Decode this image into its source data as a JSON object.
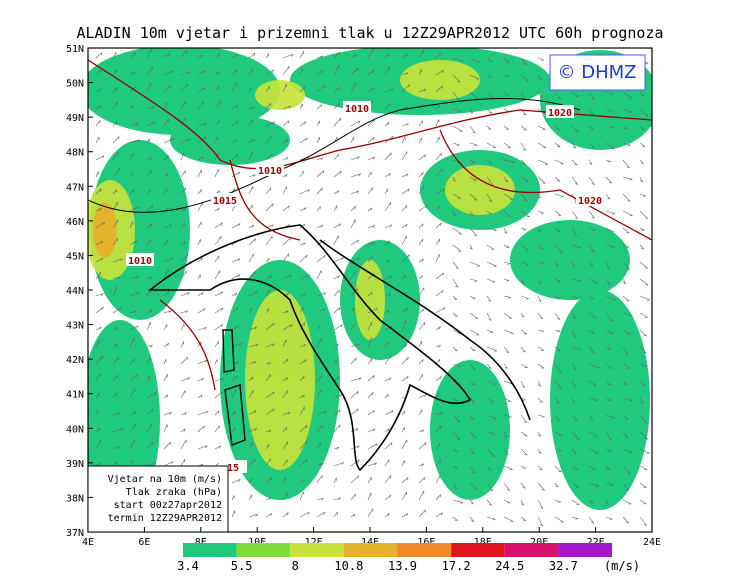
{
  "header": {
    "title": "ALADIN 10m vjetar i prizemni tlak u 12Z29APR2012 UTC 60h prognoza"
  },
  "logo": "© DHMZ",
  "lat_labels": [
    "51N",
    "50N",
    "49N",
    "48N",
    "47N",
    "46N",
    "45N",
    "44N",
    "43N",
    "42N",
    "41N",
    "40N",
    "39N",
    "38N",
    "37N"
  ],
  "lon_labels": [
    "4E",
    "6E",
    "8E",
    "10E",
    "12E",
    "14E",
    "16E",
    "18E",
    "20E",
    "22E",
    "24E"
  ],
  "isobar_labels": [
    "1010",
    "1010",
    "1010",
    "1015",
    "1020",
    "1020",
    "15"
  ],
  "info_box": [
    "Vjetar na 10m (m/s)",
    "Tlak zraka (hPa)",
    "start 00z27apr2012",
    "termin 12Z29APR2012"
  ],
  "legend": {
    "labels": [
      "3.4",
      "5.5",
      "8",
      "10.8",
      "13.9",
      "17.2",
      "24.5",
      "32.7"
    ],
    "unit": "(m/s)",
    "colors": [
      "#1fc97e",
      "#7fdc3a",
      "#c8e23a",
      "#e3b32c",
      "#f08a2c",
      "#e0141c",
      "#d8106a",
      "#a516c8"
    ]
  }
}
